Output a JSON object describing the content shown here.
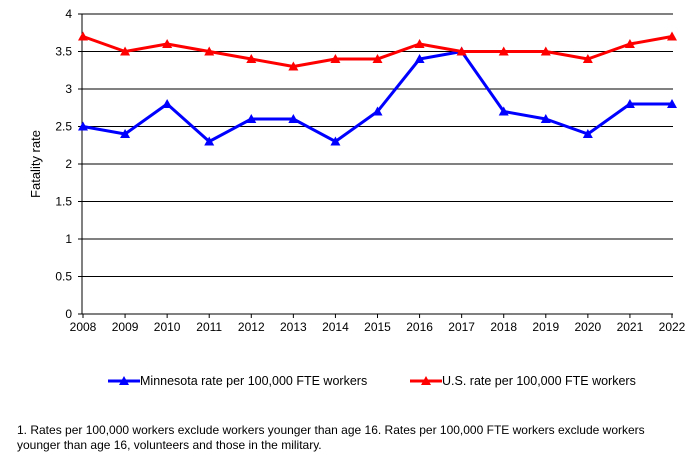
{
  "chart_data": {
    "type": "line",
    "title": "",
    "xlabel": "",
    "ylabel": "Fatality rate",
    "ylim": [
      0,
      4
    ],
    "yticks": [
      "0",
      "0.5",
      "1",
      "1.5",
      "2",
      "2.5",
      "3",
      "3.5",
      "4"
    ],
    "grid": true,
    "legend_position": "bottom",
    "categories": [
      "2008",
      "2009",
      "2010",
      "2011",
      "2012",
      "2013",
      "2014",
      "2015",
      "2016",
      "2017",
      "2018",
      "2019",
      "2020",
      "2021",
      "2022"
    ],
    "series": [
      {
        "name": "Minnesota rate per 100,000 FTE workers",
        "color": "#0000FF",
        "marker": "triangle",
        "values": [
          2.5,
          2.4,
          2.8,
          2.3,
          2.6,
          2.6,
          2.3,
          2.7,
          3.4,
          3.5,
          2.7,
          2.6,
          2.4,
          2.8,
          2.8
        ]
      },
      {
        "name": "U.S. rate per 100,000 FTE workers",
        "color": "#FF0000",
        "marker": "triangle",
        "values": [
          3.7,
          3.5,
          3.6,
          3.5,
          3.4,
          3.3,
          3.4,
          3.4,
          3.6,
          3.5,
          3.5,
          3.5,
          3.4,
          3.6,
          3.7
        ]
      }
    ]
  },
  "footnote": "1.  Rates per 100,000 workers exclude workers younger than age 16. Rates per 100,000 FTE workers exclude workers younger than age 16, volunteers and those in the military."
}
